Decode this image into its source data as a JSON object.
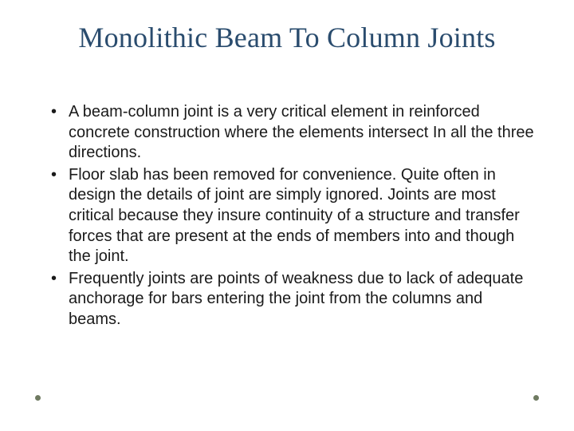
{
  "title": "Monolithic Beam To Column Joints",
  "title_color": "#2a4c6e",
  "title_fontsize": 36,
  "title_fontfamily": "Garamond, 'Times New Roman', serif",
  "body_fontsize": 20,
  "body_color": "#1a1a1a",
  "background_color": "#ffffff",
  "accent_dot_color": "#6f7a61",
  "bullets": [
    "A beam-column joint is a very critical element in reinforced concrete construction where the elements intersect In all the three directions.",
    "Floor slab has been removed for convenience. Quite often in design the details of joint  are simply ignored. Joints are most critical because they insure continuity of a structure and transfer  forces that are present at the ends of members into and though the joint.",
    "Frequently joints are points of weakness due to lack of adequate anchorage for bars entering the joint from the columns and beams."
  ]
}
